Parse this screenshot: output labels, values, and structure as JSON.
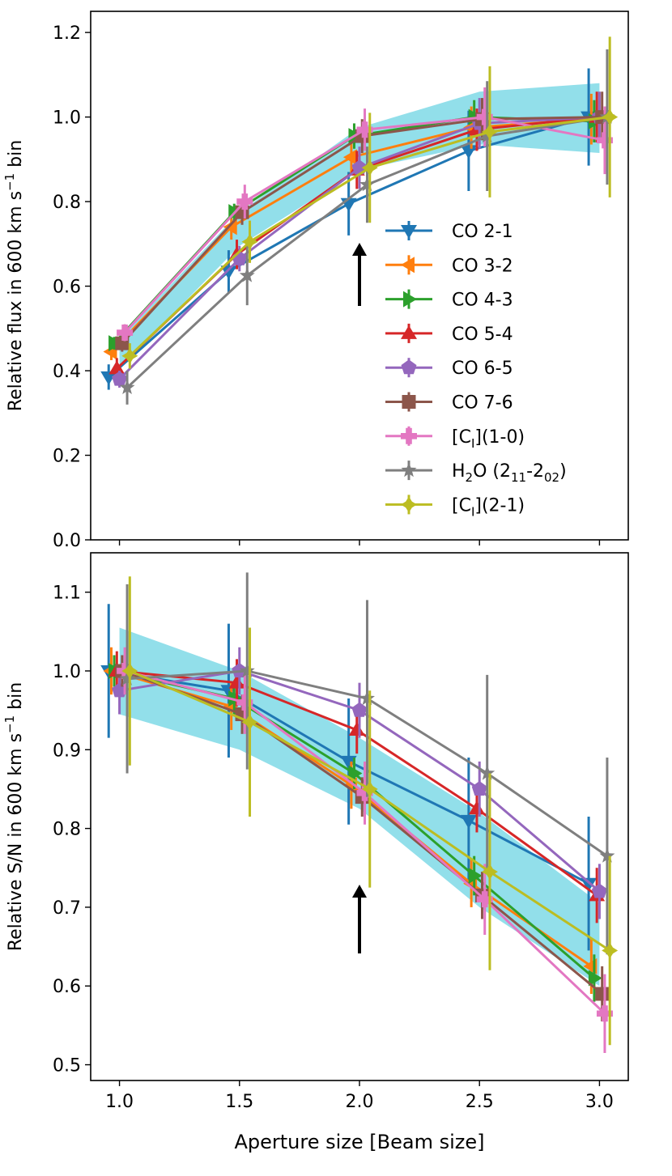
{
  "chart_data": [
    {
      "type": "line",
      "panel": "top",
      "ylabel_parts": [
        "Relative flux in 600 km s",
        "−1",
        " bin"
      ],
      "xlabel": "",
      "ylim": [
        0.0,
        1.25
      ],
      "yticks": [
        "0.0",
        "0.2",
        "0.4",
        "0.6",
        "0.8",
        "1.0",
        "1.2"
      ],
      "x": [
        1.0,
        1.5,
        2.0,
        2.5,
        3.0
      ],
      "annotation": "arrow at aperture 2.0",
      "band": {
        "color": "#7fd9e6",
        "lower": [
          0.405,
          0.695,
          0.875,
          0.935,
          0.915
        ],
        "upper": [
          0.475,
          0.775,
          0.975,
          1.06,
          1.08
        ]
      },
      "legend_position": "center-right",
      "series": [
        {
          "name": "CO 2-1",
          "color": "#1f77b4",
          "marker": "tri-down",
          "values": [
            0.385,
            0.635,
            0.795,
            0.92,
            1.0
          ],
          "errors": [
            0.03,
            0.05,
            0.075,
            0.095,
            0.115
          ]
        },
        {
          "name": "CO 3-2",
          "color": "#ff7f0e",
          "marker": "tri-left",
          "values": [
            0.445,
            0.74,
            0.905,
            0.975,
            0.995
          ],
          "errors": [
            0.02,
            0.03,
            0.04,
            0.05,
            0.06
          ]
        },
        {
          "name": "CO 4-3",
          "color": "#2ca02c",
          "marker": "tri-right",
          "values": [
            0.465,
            0.775,
            0.955,
            1.0,
            0.99
          ],
          "errors": [
            0.015,
            0.02,
            0.03,
            0.04,
            0.05
          ]
        },
        {
          "name": "CO 5-4",
          "color": "#d62728",
          "marker": "tri-up",
          "values": [
            0.405,
            0.675,
            0.875,
            0.97,
            1.0
          ],
          "errors": [
            0.025,
            0.035,
            0.045,
            0.05,
            0.06
          ]
        },
        {
          "name": "CO 6-5",
          "color": "#9467bd",
          "marker": "pentagon",
          "values": [
            0.38,
            0.665,
            0.88,
            0.985,
            1.0
          ],
          "errors": [
            0.02,
            0.03,
            0.05,
            0.06,
            0.06
          ]
        },
        {
          "name": "CO 7-6",
          "color": "#8c564b",
          "marker": "square",
          "values": [
            0.465,
            0.775,
            0.955,
            0.995,
            1.0
          ],
          "errors": [
            0.02,
            0.03,
            0.04,
            0.05,
            0.06
          ]
        },
        {
          "name": "[CI](1-0)",
          "label_parts": [
            "[C",
            "I",
            "](1-0)"
          ],
          "color": "#e377c2",
          "marker": "plus",
          "values": [
            0.49,
            0.8,
            0.97,
            1.0,
            0.945
          ],
          "errors": [
            0.02,
            0.04,
            0.05,
            0.07,
            0.08
          ]
        },
        {
          "name": "H2O (211-202)",
          "label_parts": [
            "H",
            "2",
            "O (2",
            "11",
            "-2",
            "02",
            ")"
          ],
          "color": "#7f7f7f",
          "marker": "star",
          "values": [
            0.36,
            0.625,
            0.84,
            0.955,
            1.0
          ],
          "errors": [
            0.04,
            0.07,
            0.09,
            0.13,
            0.16
          ]
        },
        {
          "name": "[CI](2-1)",
          "label_parts": [
            "[C",
            "I",
            "](2-1)"
          ],
          "color": "#bcbd22",
          "marker": "diamond",
          "values": [
            0.435,
            0.705,
            0.88,
            0.965,
            1.0
          ],
          "errors": [
            0.03,
            0.05,
            0.13,
            0.155,
            0.19
          ]
        }
      ]
    },
    {
      "type": "line",
      "panel": "bottom",
      "ylabel_parts": [
        "Relative S/N in 600 km s",
        "−1",
        " bin"
      ],
      "xlabel": "Aperture size [Beam size]",
      "xticks": [
        "1.0",
        "1.5",
        "2.0",
        "2.5",
        "3.0"
      ],
      "ylim": [
        0.48,
        1.15
      ],
      "yticks": [
        "0.5",
        "0.6",
        "0.7",
        "0.8",
        "0.9",
        "1.0",
        "1.1"
      ],
      "x": [
        1.0,
        1.5,
        2.0,
        2.5,
        3.0
      ],
      "annotation": "arrow at aperture 2.0",
      "band": {
        "color": "#7fd9e6",
        "lower": [
          0.945,
          0.9,
          0.825,
          0.7,
          0.6
        ],
        "upper": [
          1.055,
          1.0,
          0.915,
          0.82,
          0.705
        ]
      },
      "series": [
        {
          "name": "CO 2-1",
          "color": "#1f77b4",
          "marker": "tri-down",
          "values": [
            1.0,
            0.975,
            0.885,
            0.81,
            0.73
          ],
          "errors": [
            0.085,
            0.085,
            0.08,
            0.08,
            0.085
          ]
        },
        {
          "name": "CO 3-2",
          "color": "#ff7f0e",
          "marker": "tri-left",
          "values": [
            1.0,
            0.955,
            0.855,
            0.73,
            0.625
          ],
          "errors": [
            0.03,
            0.03,
            0.03,
            0.03,
            0.035
          ]
        },
        {
          "name": "CO 4-3",
          "color": "#2ca02c",
          "marker": "tri-right",
          "values": [
            1.0,
            0.965,
            0.87,
            0.74,
            0.61
          ],
          "errors": [
            0.02,
            0.02,
            0.02,
            0.025,
            0.03
          ]
        },
        {
          "name": "CO 5-4",
          "color": "#d62728",
          "marker": "tri-up",
          "values": [
            1.0,
            0.985,
            0.925,
            0.825,
            0.715
          ],
          "errors": [
            0.025,
            0.03,
            0.03,
            0.03,
            0.035
          ]
        },
        {
          "name": "CO 6-5",
          "color": "#9467bd",
          "marker": "pentagon",
          "values": [
            0.975,
            1.0,
            0.95,
            0.85,
            0.72
          ],
          "errors": [
            0.03,
            0.03,
            0.035,
            0.035,
            0.035
          ]
        },
        {
          "name": "CO 7-6",
          "color": "#8c564b",
          "marker": "square",
          "values": [
            1.0,
            0.945,
            0.84,
            0.715,
            0.59
          ],
          "errors": [
            0.02,
            0.025,
            0.025,
            0.03,
            0.035
          ]
        },
        {
          "name": "[CI](1-0)",
          "color": "#e377c2",
          "marker": "plus",
          "values": [
            1.0,
            0.96,
            0.845,
            0.71,
            0.565
          ],
          "errors": [
            0.03,
            0.04,
            0.04,
            0.045,
            0.05
          ]
        },
        {
          "name": "H2O (211-202)",
          "color": "#7f7f7f",
          "marker": "star",
          "values": [
            0.99,
            1.0,
            0.965,
            0.87,
            0.765
          ],
          "errors": [
            0.12,
            0.125,
            0.125,
            0.125,
            0.125
          ]
        },
        {
          "name": "[CI](2-1)",
          "color": "#bcbd22",
          "marker": "diamond",
          "values": [
            1.0,
            0.935,
            0.85,
            0.745,
            0.645
          ],
          "errors": [
            0.12,
            0.12,
            0.125,
            0.125,
            0.12
          ]
        }
      ]
    }
  ]
}
